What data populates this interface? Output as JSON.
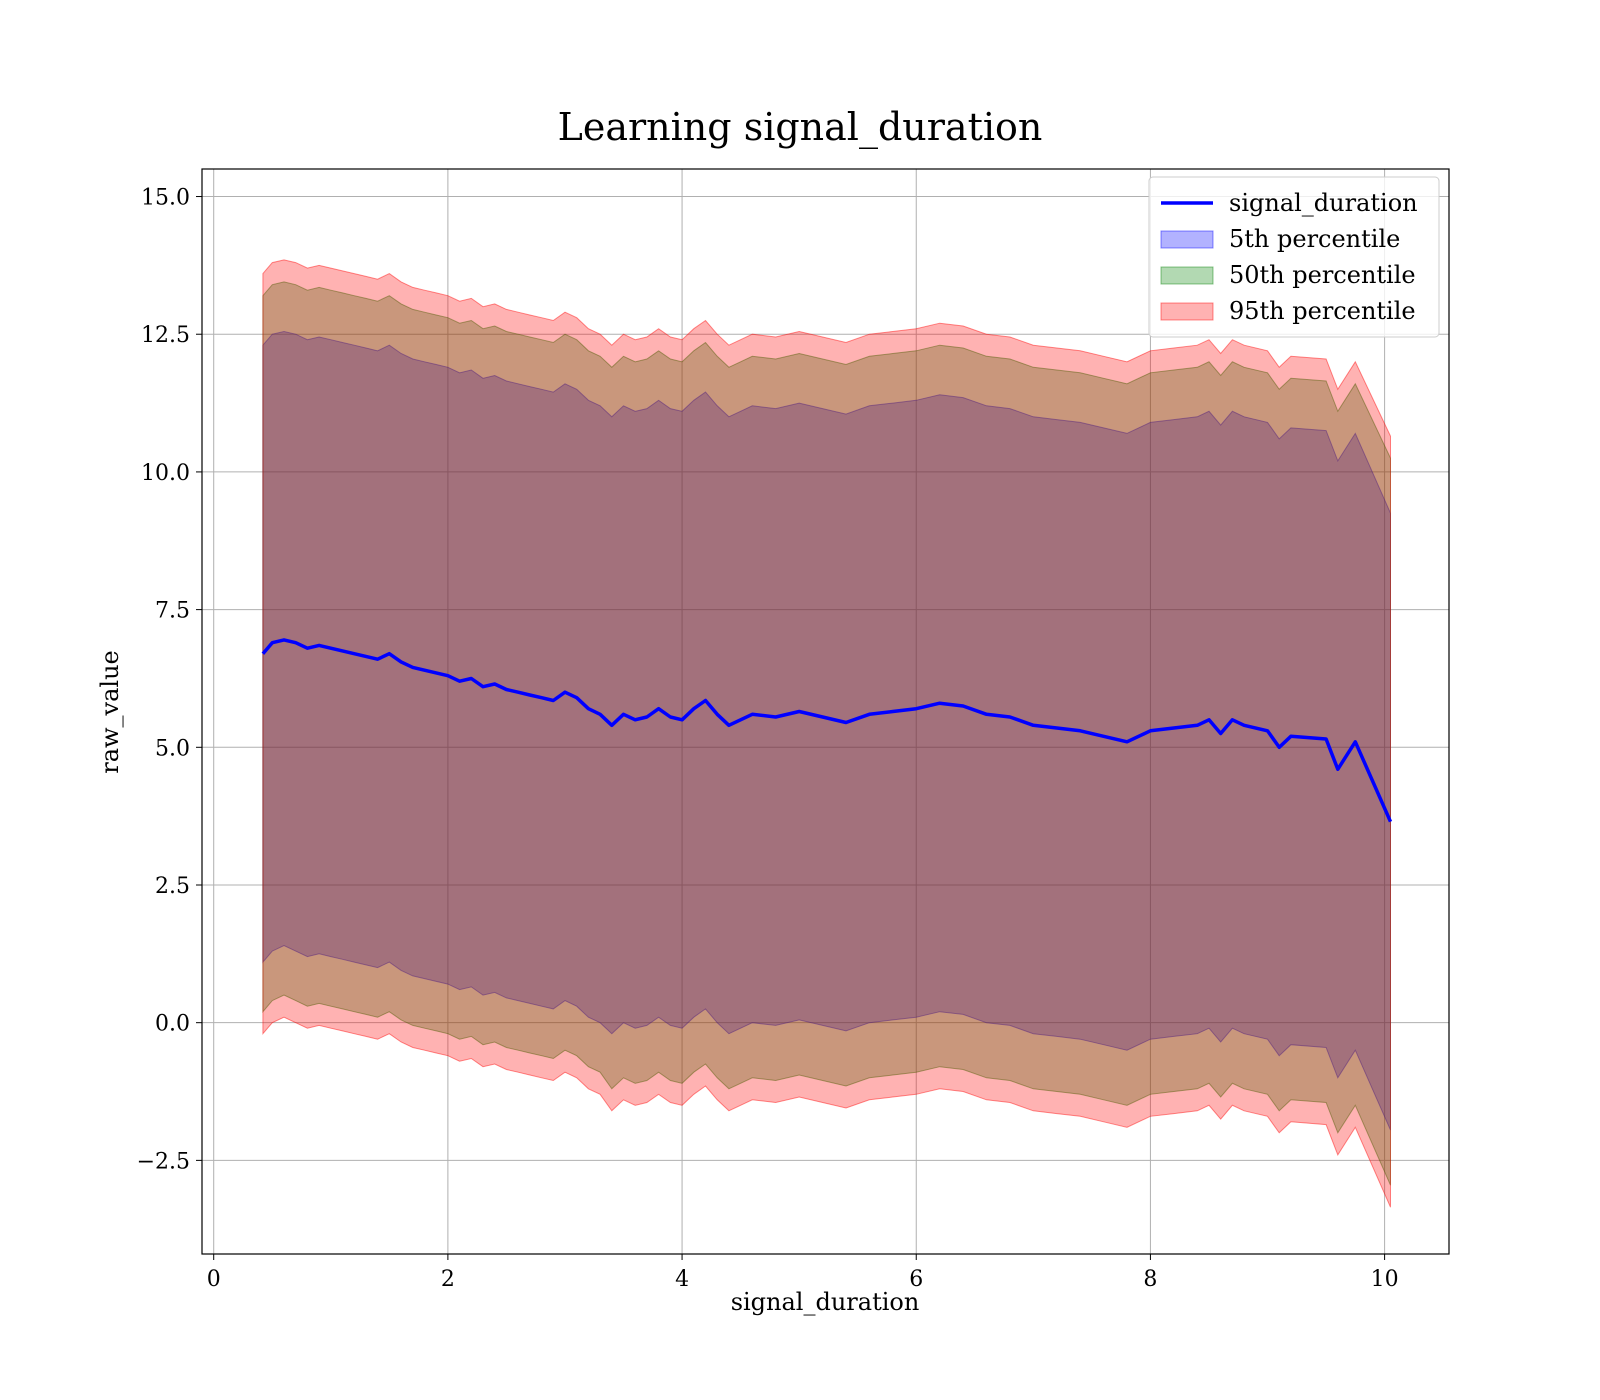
{
  "chart_data": {
    "type": "area",
    "title": "Learning signal_duration",
    "xlabel": "signal_duration",
    "ylabel": "raw_value",
    "xlim": [
      -0.1,
      10.55
    ],
    "ylim": [
      -4.2,
      15.5
    ],
    "xticks": [
      0,
      2,
      4,
      6,
      8,
      10
    ],
    "xtick_labels": [
      "0",
      "2",
      "4",
      "6",
      "8",
      "10"
    ],
    "yticks": [
      -2.5,
      0.0,
      2.5,
      5.0,
      7.5,
      10.0,
      12.5,
      15.0
    ],
    "ytick_labels": [
      "−2.5",
      "0.0",
      "2.5",
      "5.0",
      "7.5",
      "10.0",
      "12.5",
      "15.0"
    ],
    "grid": true,
    "legend_position": "top-right",
    "colors": {
      "line": "#0000ff",
      "band5": "#0000ff",
      "band50": "#008000",
      "band95": "#ff0000"
    },
    "legend": [
      {
        "label": "signal_duration",
        "kind": "line",
        "color": "#0000ff"
      },
      {
        "label": "5th percentile",
        "kind": "patch",
        "color": "#0000ff"
      },
      {
        "label": "50th percentile",
        "kind": "patch",
        "color": "#008000"
      },
      {
        "label": "95th percentile",
        "kind": "patch",
        "color": "#ff0000"
      }
    ],
    "x": [
      0.42,
      0.5,
      0.6,
      0.7,
      0.8,
      0.9,
      1.0,
      1.1,
      1.2,
      1.3,
      1.4,
      1.5,
      1.6,
      1.7,
      1.8,
      1.9,
      2.0,
      2.1,
      2.2,
      2.3,
      2.4,
      2.5,
      2.6,
      2.7,
      2.8,
      2.9,
      3.0,
      3.1,
      3.2,
      3.3,
      3.4,
      3.5,
      3.6,
      3.7,
      3.8,
      3.9,
      4.0,
      4.1,
      4.2,
      4.3,
      4.4,
      4.5,
      4.6,
      4.8,
      5.0,
      5.2,
      5.4,
      5.6,
      5.8,
      6.0,
      6.2,
      6.4,
      6.6,
      6.8,
      7.0,
      7.2,
      7.4,
      7.6,
      7.8,
      8.0,
      8.2,
      8.4,
      8.5,
      8.6,
      8.7,
      8.8,
      9.0,
      9.1,
      9.2,
      9.5,
      9.6,
      9.75,
      10.05
    ],
    "series": [
      {
        "name": "signal_duration",
        "values": [
          6.7,
          6.9,
          6.95,
          6.9,
          6.8,
          6.85,
          6.8,
          6.75,
          6.7,
          6.65,
          6.6,
          6.7,
          6.55,
          6.45,
          6.4,
          6.35,
          6.3,
          6.2,
          6.25,
          6.1,
          6.15,
          6.05,
          6.0,
          5.95,
          5.9,
          5.85,
          6.0,
          5.9,
          5.7,
          5.6,
          5.4,
          5.6,
          5.5,
          5.55,
          5.7,
          5.55,
          5.5,
          5.7,
          5.85,
          5.6,
          5.4,
          5.5,
          5.6,
          5.55,
          5.65,
          5.55,
          5.45,
          5.6,
          5.65,
          5.7,
          5.8,
          5.75,
          5.6,
          5.55,
          5.4,
          5.35,
          5.3,
          5.2,
          5.1,
          5.3,
          5.35,
          5.4,
          5.5,
          5.25,
          5.5,
          5.4,
          5.3,
          5.0,
          5.2,
          5.15,
          4.6,
          5.1,
          3.65
        ]
      },
      {
        "name": "5th percentile",
        "lower": [
          1.1,
          1.3,
          1.4,
          1.3,
          1.2,
          1.25,
          1.2,
          1.15,
          1.1,
          1.05,
          1.0,
          1.1,
          0.95,
          0.85,
          0.8,
          0.75,
          0.7,
          0.6,
          0.65,
          0.5,
          0.55,
          0.45,
          0.4,
          0.35,
          0.3,
          0.25,
          0.4,
          0.3,
          0.1,
          0.0,
          -0.2,
          0.0,
          -0.1,
          -0.05,
          0.1,
          -0.05,
          -0.1,
          0.1,
          0.25,
          0.0,
          -0.2,
          -0.1,
          0.0,
          -0.05,
          0.05,
          -0.05,
          -0.15,
          0.0,
          0.05,
          0.1,
          0.2,
          0.15,
          0.0,
          -0.05,
          -0.2,
          -0.25,
          -0.3,
          -0.4,
          -0.5,
          -0.3,
          -0.25,
          -0.2,
          -0.1,
          -0.35,
          -0.1,
          -0.2,
          -0.3,
          -0.6,
          -0.4,
          -0.45,
          -1.0,
          -0.5,
          -1.95
        ],
        "upper": [
          12.3,
          12.5,
          12.55,
          12.5,
          12.4,
          12.45,
          12.4,
          12.35,
          12.3,
          12.25,
          12.2,
          12.3,
          12.15,
          12.05,
          12.0,
          11.95,
          11.9,
          11.8,
          11.85,
          11.7,
          11.75,
          11.65,
          11.6,
          11.55,
          11.5,
          11.45,
          11.6,
          11.5,
          11.3,
          11.2,
          11.0,
          11.2,
          11.1,
          11.15,
          11.3,
          11.15,
          11.1,
          11.3,
          11.45,
          11.2,
          11.0,
          11.1,
          11.2,
          11.15,
          11.25,
          11.15,
          11.05,
          11.2,
          11.25,
          11.3,
          11.4,
          11.35,
          11.2,
          11.15,
          11.0,
          10.95,
          10.9,
          10.8,
          10.7,
          10.9,
          10.95,
          11.0,
          11.1,
          10.85,
          11.1,
          11.0,
          10.9,
          10.6,
          10.8,
          10.75,
          10.2,
          10.7,
          9.25
        ]
      },
      {
        "name": "50th percentile",
        "lower": [
          0.2,
          0.4,
          0.5,
          0.4,
          0.3,
          0.35,
          0.3,
          0.25,
          0.2,
          0.15,
          0.1,
          0.2,
          0.05,
          -0.05,
          -0.1,
          -0.15,
          -0.2,
          -0.3,
          -0.25,
          -0.4,
          -0.35,
          -0.45,
          -0.5,
          -0.55,
          -0.6,
          -0.65,
          -0.5,
          -0.6,
          -0.8,
          -0.9,
          -1.2,
          -1.0,
          -1.1,
          -1.05,
          -0.9,
          -1.05,
          -1.1,
          -0.9,
          -0.75,
          -1.0,
          -1.2,
          -1.1,
          -1.0,
          -1.05,
          -0.95,
          -1.05,
          -1.15,
          -1.0,
          -0.95,
          -0.9,
          -0.8,
          -0.85,
          -1.0,
          -1.05,
          -1.2,
          -1.25,
          -1.3,
          -1.4,
          -1.5,
          -1.3,
          -1.25,
          -1.2,
          -1.1,
          -1.35,
          -1.1,
          -1.2,
          -1.3,
          -1.6,
          -1.4,
          -1.45,
          -2.0,
          -1.5,
          -2.95
        ],
        "upper": [
          13.2,
          13.4,
          13.45,
          13.4,
          13.3,
          13.35,
          13.3,
          13.25,
          13.2,
          13.15,
          13.1,
          13.2,
          13.05,
          12.95,
          12.9,
          12.85,
          12.8,
          12.7,
          12.75,
          12.6,
          12.65,
          12.55,
          12.5,
          12.45,
          12.4,
          12.35,
          12.5,
          12.4,
          12.2,
          12.1,
          11.9,
          12.1,
          12.0,
          12.05,
          12.2,
          12.05,
          12.0,
          12.2,
          12.35,
          12.1,
          11.9,
          12.0,
          12.1,
          12.05,
          12.15,
          12.05,
          11.95,
          12.1,
          12.15,
          12.2,
          12.3,
          12.25,
          12.1,
          12.05,
          11.9,
          11.85,
          11.8,
          11.7,
          11.6,
          11.8,
          11.85,
          11.9,
          12.0,
          11.75,
          12.0,
          11.9,
          11.8,
          11.5,
          11.7,
          11.65,
          11.1,
          11.6,
          10.25
        ]
      },
      {
        "name": "95th percentile",
        "lower": [
          -0.2,
          0.0,
          0.1,
          0.0,
          -0.1,
          -0.05,
          -0.1,
          -0.15,
          -0.2,
          -0.25,
          -0.3,
          -0.2,
          -0.35,
          -0.45,
          -0.5,
          -0.55,
          -0.6,
          -0.7,
          -0.65,
          -0.8,
          -0.75,
          -0.85,
          -0.9,
          -0.95,
          -1.0,
          -1.05,
          -0.9,
          -1.0,
          -1.2,
          -1.3,
          -1.6,
          -1.4,
          -1.5,
          -1.45,
          -1.3,
          -1.45,
          -1.5,
          -1.3,
          -1.15,
          -1.4,
          -1.6,
          -1.5,
          -1.4,
          -1.45,
          -1.35,
          -1.45,
          -1.55,
          -1.4,
          -1.35,
          -1.3,
          -1.2,
          -1.25,
          -1.4,
          -1.45,
          -1.6,
          -1.65,
          -1.7,
          -1.8,
          -1.9,
          -1.7,
          -1.65,
          -1.6,
          -1.5,
          -1.75,
          -1.5,
          -1.6,
          -1.7,
          -2.0,
          -1.8,
          -1.85,
          -2.4,
          -1.9,
          -3.35
        ],
        "upper": [
          13.6,
          13.8,
          13.85,
          13.8,
          13.7,
          13.75,
          13.7,
          13.65,
          13.6,
          13.55,
          13.5,
          13.6,
          13.45,
          13.35,
          13.3,
          13.25,
          13.2,
          13.1,
          13.15,
          13.0,
          13.05,
          12.95,
          12.9,
          12.85,
          12.8,
          12.75,
          12.9,
          12.8,
          12.6,
          12.5,
          12.3,
          12.5,
          12.4,
          12.45,
          12.6,
          12.45,
          12.4,
          12.6,
          12.75,
          12.5,
          12.3,
          12.4,
          12.5,
          12.45,
          12.55,
          12.45,
          12.35,
          12.5,
          12.55,
          12.6,
          12.7,
          12.65,
          12.5,
          12.45,
          12.3,
          12.25,
          12.2,
          12.1,
          12.0,
          12.2,
          12.25,
          12.3,
          12.4,
          12.15,
          12.4,
          12.3,
          12.2,
          11.9,
          12.1,
          12.05,
          11.5,
          12.0,
          10.65
        ]
      }
    ]
  }
}
